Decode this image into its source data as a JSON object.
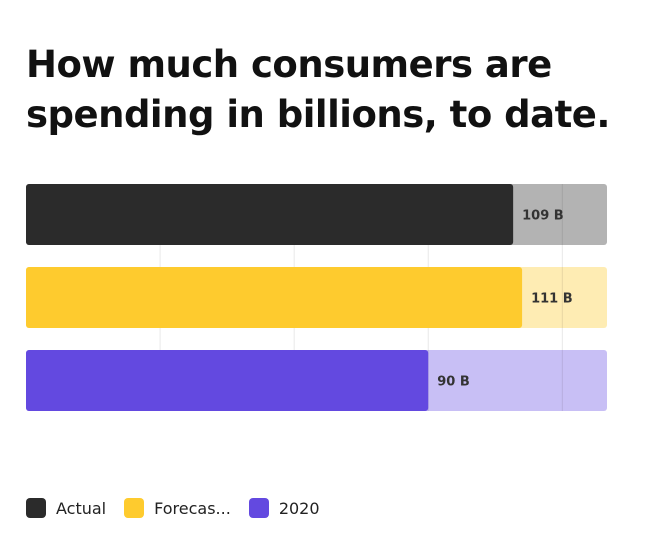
{
  "chart_data": {
    "type": "bar",
    "orientation": "horizontal",
    "title": "How much consumers are spending in billions, to date.",
    "xlim": [
      0,
      130
    ],
    "grid": true,
    "categories": [
      "Actual",
      "Forecast",
      "2020"
    ],
    "values": [
      109,
      111,
      90
    ],
    "value_labels": [
      "109 B",
      "111 B",
      "90 B"
    ],
    "colors": [
      "#2b2b2b",
      "#fecb2e",
      "#6349e0"
    ],
    "track_colors": [
      "#b3b3b3",
      "#feecb3",
      "#c8bff5"
    ],
    "legend": {
      "position": "bottom-left",
      "items": [
        {
          "label": "Actual",
          "color": "#2b2b2b"
        },
        {
          "label": "Forecas...",
          "color": "#fecb2e"
        },
        {
          "label": "2020",
          "color": "#6349e0"
        }
      ]
    }
  }
}
